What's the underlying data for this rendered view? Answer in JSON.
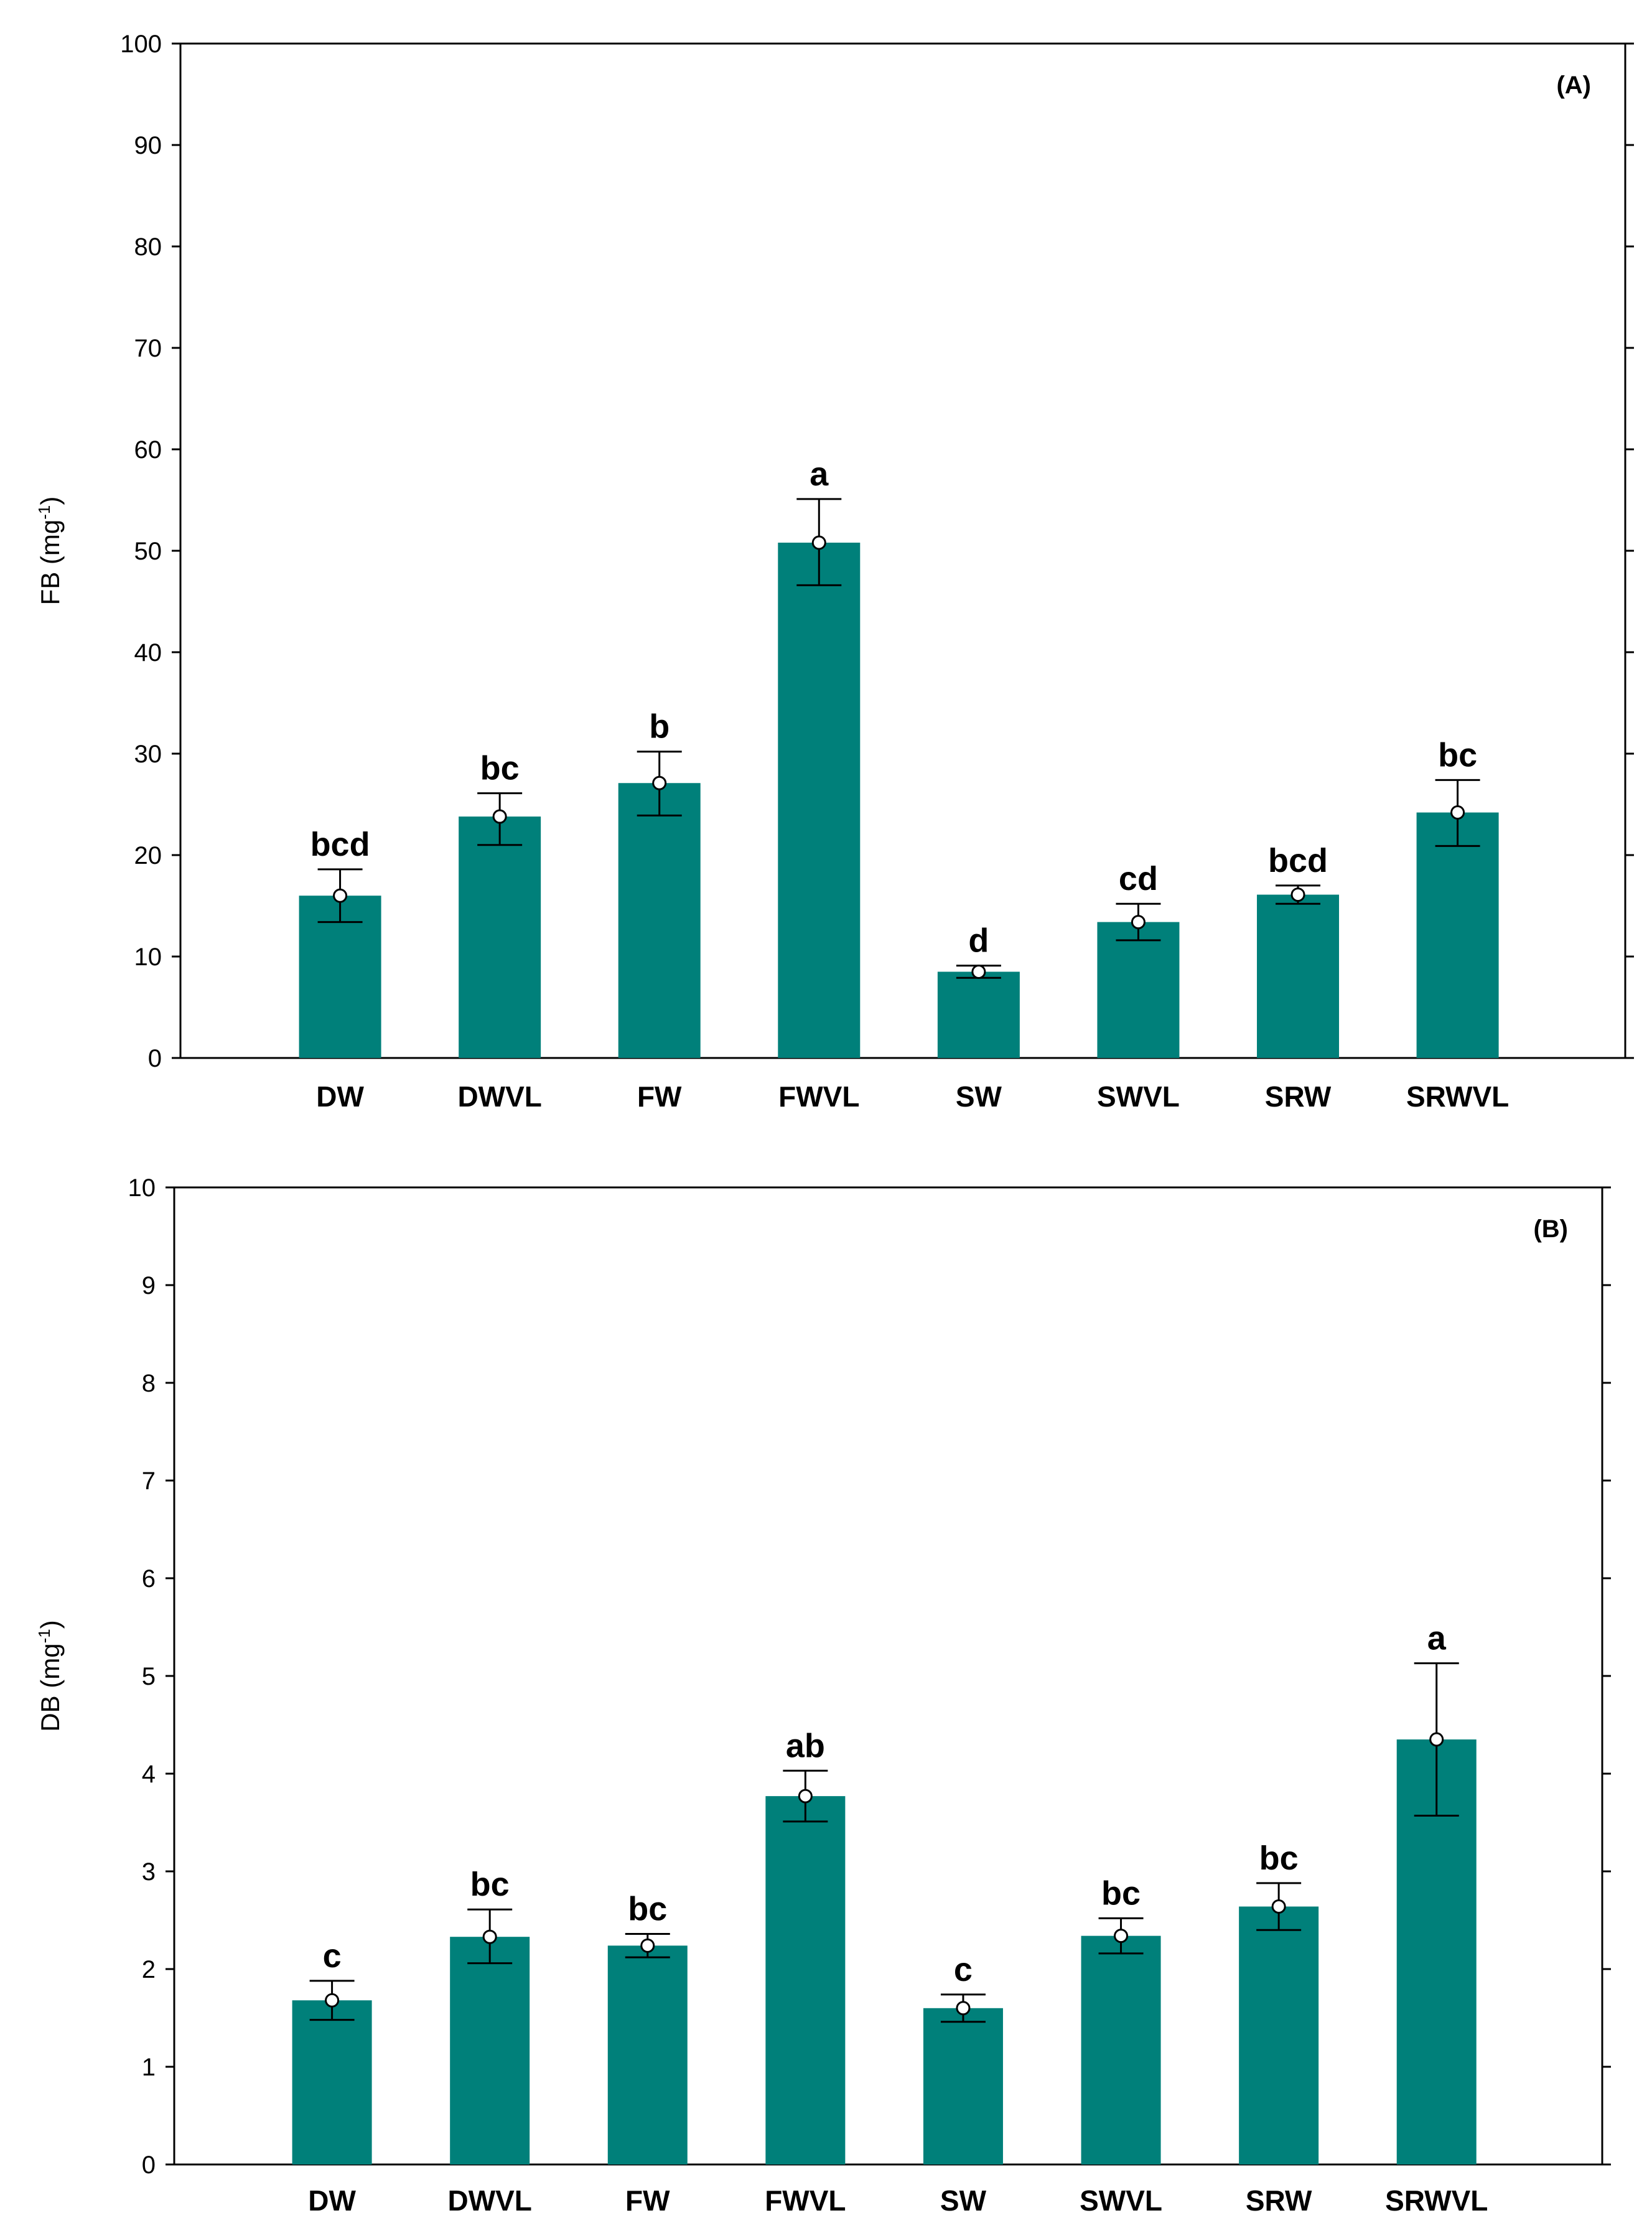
{
  "colors": {
    "bar": "#00807a",
    "axis": "#000000",
    "marker_fill": "#ffffff"
  },
  "chart_data": [
    {
      "type": "bar",
      "panel_label": "(A)",
      "ylabel_main": "FB (mg",
      "ylabel_sup": "-1",
      "ylabel_close": ")",
      "xlabel": "",
      "ylim": [
        0,
        100
      ],
      "yticks": [
        0,
        10,
        20,
        30,
        40,
        50,
        60,
        70,
        80,
        90,
        100
      ],
      "categories": [
        "DW",
        "DWVL",
        "FW",
        "FWVL",
        "SW",
        "SWVL",
        "SRW",
        "SRWVL"
      ],
      "values": [
        16.0,
        23.8,
        27.1,
        50.8,
        8.5,
        13.4,
        16.1,
        24.2
      ],
      "error_low": [
        13.4,
        21.0,
        23.9,
        46.6,
        7.9,
        11.6,
        15.2,
        20.9
      ],
      "error_high": [
        18.6,
        26.1,
        30.2,
        55.1,
        9.1,
        15.2,
        17.0,
        27.4
      ],
      "letters": [
        "bcd",
        "bc",
        "b",
        "a",
        "d",
        "cd",
        "bcd",
        "bc"
      ]
    },
    {
      "type": "bar",
      "panel_label": "(B)",
      "ylabel_main": "DB (mg",
      "ylabel_sup": "-1",
      "ylabel_close": ")",
      "xlabel": "",
      "ylim": [
        0,
        10
      ],
      "yticks": [
        0,
        1,
        2,
        3,
        4,
        5,
        6,
        7,
        8,
        9,
        10
      ],
      "categories": [
        "DW",
        "DWVL",
        "FW",
        "FWVL",
        "SW",
        "SWVL",
        "SRW",
        "SRWVL"
      ],
      "values": [
        1.68,
        2.33,
        2.24,
        3.77,
        1.6,
        2.34,
        2.64,
        4.35
      ],
      "error_low": [
        1.48,
        2.06,
        2.12,
        3.51,
        1.46,
        2.16,
        2.4,
        3.57
      ],
      "error_high": [
        1.88,
        2.61,
        2.36,
        4.03,
        1.74,
        2.52,
        2.88,
        5.13
      ],
      "letters": [
        "c",
        "bc",
        "bc",
        "ab",
        "c",
        "bc",
        "bc",
        "a"
      ]
    }
  ]
}
